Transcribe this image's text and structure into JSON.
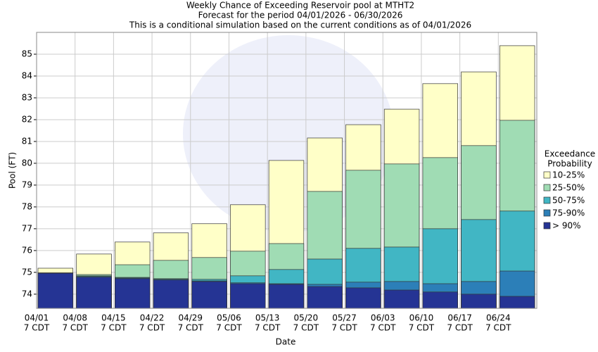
{
  "chart_data": {
    "type": "bar",
    "title": "Weekly Chance of Exceeding Reservoir pool at MTHT2",
    "subtitle": "Forecast for the period 04/01/2026 - 06/30/2026",
    "note": "This is a conditional simulation based on the current conditions as of 04/01/2026",
    "xlabel": "Date",
    "ylabel": "Pool (FT)",
    "legend_title": [
      "Exceedance",
      "Probability"
    ],
    "categories": [
      "04/01",
      "04/08",
      "04/15",
      "04/22",
      "04/29",
      "05/06",
      "05/13",
      "05/20",
      "05/27",
      "06/03",
      "06/10",
      "06/17",
      "06/24"
    ],
    "category_sublabel": "7 CDT",
    "series": [
      {
        "name": "10-25%",
        "color": "#ffffc8",
        "values": [
          75.19,
          75.84,
          76.39,
          76.81,
          77.23,
          78.1,
          80.13,
          81.16,
          81.77,
          82.48,
          83.65,
          84.19,
          85.39
        ]
      },
      {
        "name": "25-50%",
        "color": "#a0dcb4",
        "values": [
          74.98,
          74.9,
          75.35,
          75.55,
          75.68,
          75.97,
          76.32,
          78.71,
          79.68,
          79.97,
          80.26,
          80.81,
          81.97
        ]
      },
      {
        "name": "50-75%",
        "color": "#41b6c4",
        "values": [
          74.97,
          74.84,
          74.77,
          74.71,
          74.68,
          74.84,
          75.13,
          75.61,
          76.1,
          76.16,
          77.0,
          77.42,
          77.81
        ]
      },
      {
        "name": "75-90%",
        "color": "#2c7fb8",
        "values": [
          74.97,
          74.81,
          74.74,
          74.68,
          74.61,
          74.52,
          74.48,
          74.45,
          74.55,
          74.58,
          74.48,
          74.58,
          75.06
        ]
      },
      {
        "name": "> 90%",
        "color": "#253494",
        "values": [
          74.96,
          74.78,
          74.71,
          74.65,
          74.58,
          74.48,
          74.45,
          74.35,
          74.29,
          74.19,
          74.1,
          74.0,
          73.9
        ]
      }
    ],
    "ylim": [
      73.35,
      86.0
    ],
    "yticks": [
      74,
      75,
      76,
      77,
      78,
      79,
      80,
      81,
      82,
      83,
      84,
      85
    ],
    "grid": true
  }
}
